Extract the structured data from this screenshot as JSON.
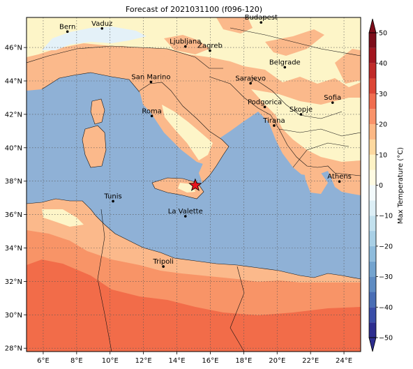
{
  "title": "Forecast of 2021031100 (f096-120)",
  "map": {
    "lon_range": [
      5,
      25
    ],
    "lat_range": [
      27.8,
      47.8
    ],
    "lon_ticks": [
      {
        "v": 6,
        "label": "6°E"
      },
      {
        "v": 8,
        "label": "8°E"
      },
      {
        "v": 10,
        "label": "10°E"
      },
      {
        "v": 12,
        "label": "12°E"
      },
      {
        "v": 14,
        "label": "14°E"
      },
      {
        "v": 16,
        "label": "16°E"
      },
      {
        "v": 18,
        "label": "18°E"
      },
      {
        "v": 20,
        "label": "20°E"
      },
      {
        "v": 22,
        "label": "22°E"
      },
      {
        "v": 24,
        "label": "24°E"
      }
    ],
    "lat_ticks": [
      {
        "v": 28,
        "label": "28°N"
      },
      {
        "v": 30,
        "label": "30°N"
      },
      {
        "v": 32,
        "label": "32°N"
      },
      {
        "v": 34,
        "label": "34°N"
      },
      {
        "v": 36,
        "label": "36°N"
      },
      {
        "v": 38,
        "label": "38°N"
      },
      {
        "v": 40,
        "label": "40°N"
      },
      {
        "v": 42,
        "label": "42°N"
      },
      {
        "v": 44,
        "label": "44°N"
      },
      {
        "v": 46,
        "label": "46°N"
      }
    ],
    "cities": [
      {
        "name": "Bern",
        "lon": 7.45,
        "lat": 46.95
      },
      {
        "name": "Vaduz",
        "lon": 9.52,
        "lat": 47.14
      },
      {
        "name": "Budapest",
        "lon": 19.04,
        "lat": 47.5
      },
      {
        "name": "Ljubljana",
        "lon": 14.51,
        "lat": 46.06
      },
      {
        "name": "Zagreb",
        "lon": 15.98,
        "lat": 45.81
      },
      {
        "name": "Belgrade",
        "lon": 20.46,
        "lat": 44.82
      },
      {
        "name": "Sarajevo",
        "lon": 18.41,
        "lat": 43.86
      },
      {
        "name": "San Marino",
        "lon": 12.45,
        "lat": 43.94
      },
      {
        "name": "Podgorica",
        "lon": 19.26,
        "lat": 42.44
      },
      {
        "name": "Sofia",
        "lon": 23.32,
        "lat": 42.7
      },
      {
        "name": "Skopje",
        "lon": 21.43,
        "lat": 42.0
      },
      {
        "name": "Roma",
        "lon": 12.5,
        "lat": 41.9
      },
      {
        "name": "Tirana",
        "lon": 19.82,
        "lat": 41.33
      },
      {
        "name": "Athens",
        "lon": 23.73,
        "lat": 37.98
      },
      {
        "name": "Tunis",
        "lon": 10.18,
        "lat": 36.8
      },
      {
        "name": "La Valette",
        "lon": 14.51,
        "lat": 35.9
      },
      {
        "name": "Tripoli",
        "lon": 13.19,
        "lat": 32.89
      }
    ],
    "marker": {
      "type": "star",
      "lon": 15.1,
      "lat": 37.75,
      "color": "#e8141c"
    }
  },
  "colorbar": {
    "label": "Max Temperature (°C)",
    "min": -50,
    "max": 50,
    "ticks": [
      {
        "v": 50,
        "label": "50"
      },
      {
        "v": 40,
        "label": "40"
      },
      {
        "v": 30,
        "label": "30"
      },
      {
        "v": 20,
        "label": "20"
      },
      {
        "v": 10,
        "label": "10"
      },
      {
        "v": 0,
        "label": "0"
      },
      {
        "v": -10,
        "label": "−10"
      },
      {
        "v": -20,
        "label": "−20"
      },
      {
        "v": -30,
        "label": "−30"
      },
      {
        "v": -40,
        "label": "−40"
      },
      {
        "v": -50,
        "label": "−50"
      }
    ],
    "bands": [
      {
        "from": -50,
        "to": -45,
        "color": "#2d2d8f"
      },
      {
        "from": -45,
        "to": -40,
        "color": "#3a4ea8"
      },
      {
        "from": -40,
        "to": -35,
        "color": "#4a6eb5"
      },
      {
        "from": -35,
        "to": -30,
        "color": "#5f8cc2"
      },
      {
        "from": -30,
        "to": -25,
        "color": "#74a4cf"
      },
      {
        "from": -25,
        "to": -20,
        "color": "#8fbcdc"
      },
      {
        "from": -20,
        "to": -15,
        "color": "#a9d0e6"
      },
      {
        "from": -15,
        "to": -10,
        "color": "#c3e1ee"
      },
      {
        "from": -10,
        "to": -5,
        "color": "#ddeff6"
      },
      {
        "from": -5,
        "to": 0,
        "color": "#f3fafc"
      },
      {
        "from": 0,
        "to": 5,
        "color": "#fffbe3"
      },
      {
        "from": 5,
        "to": 10,
        "color": "#fef3c6"
      },
      {
        "from": 10,
        "to": 15,
        "color": "#fdd9a0"
      },
      {
        "from": 15,
        "to": 20,
        "color": "#fcb885"
      },
      {
        "from": 20,
        "to": 25,
        "color": "#f9936a"
      },
      {
        "from": 25,
        "to": 30,
        "color": "#f06d4f"
      },
      {
        "from": 30,
        "to": 35,
        "color": "#dc4636"
      },
      {
        "from": 35,
        "to": 40,
        "color": "#c02a28"
      },
      {
        "from": 40,
        "to": 45,
        "color": "#a2151f"
      },
      {
        "from": 45,
        "to": 50,
        "color": "#7d0d1a"
      }
    ]
  },
  "colors": {
    "sea": "#8fb1d6",
    "warm_pale": "#fdf5c8",
    "warm_light": "#fbb98b",
    "warm_mid": "#f89467",
    "warm_deep": "#f26c49",
    "cool_pale": "#e4f1f8"
  }
}
